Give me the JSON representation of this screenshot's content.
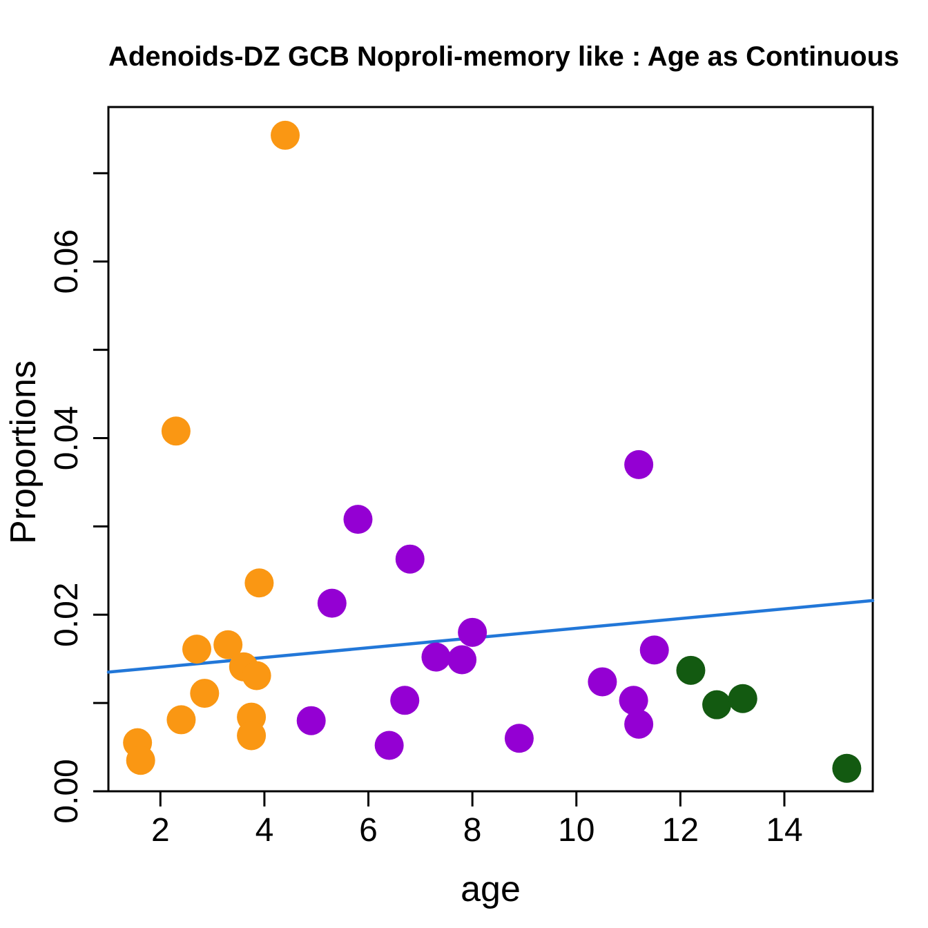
{
  "page": {
    "background_color": "#ffffff",
    "text_color": "#000000"
  },
  "chart": {
    "title": "Adenoids-DZ GCB Noproli-memory like : Age as Continuous",
    "xlabel": "age",
    "ylabel": "Proportions"
  },
  "chart_data": {
    "type": "scatter",
    "title": "Adenoids-DZ GCB Noproli-memory like : Age as Continuous",
    "xlabel": "age",
    "ylabel": "Proportions",
    "grid": false,
    "legend": null,
    "frame": "box",
    "xlim": [
      1.0,
      15.7
    ],
    "ylim": [
      0,
      0.0775
    ],
    "x_ticks": {
      "values": [
        2,
        4,
        6,
        8,
        10,
        12,
        14
      ],
      "labels": [
        "2",
        "4",
        "6",
        "8",
        "10",
        "12",
        "14"
      ]
    },
    "y_ticks": {
      "minor_values": [
        0,
        0.01,
        0.02,
        0.03,
        0.04,
        0.05,
        0.06,
        0.07
      ],
      "labeled_values": [
        0,
        0.02,
        0.04,
        0.06
      ],
      "labels": [
        "0.00",
        "0.02",
        "0.04",
        "0.06"
      ]
    },
    "series": [
      {
        "name": "group-orange",
        "color": "#FA9713",
        "points": [
          [
            1.56,
            0.0055
          ],
          [
            1.62,
            0.0035
          ],
          [
            2.3,
            0.0408
          ],
          [
            2.4,
            0.0081
          ],
          [
            2.7,
            0.0161
          ],
          [
            2.85,
            0.0111
          ],
          [
            3.3,
            0.0166
          ],
          [
            3.6,
            0.0141
          ],
          [
            3.75,
            0.0084
          ],
          [
            3.75,
            0.0063
          ],
          [
            3.85,
            0.0131
          ],
          [
            3.9,
            0.0236
          ],
          [
            4.4,
            0.0743
          ]
        ]
      },
      {
        "name": "group-purple",
        "color": "#9400D3",
        "points": [
          [
            4.9,
            0.008
          ],
          [
            5.3,
            0.0213
          ],
          [
            5.8,
            0.0308
          ],
          [
            6.4,
            0.0052
          ],
          [
            6.7,
            0.0103
          ],
          [
            6.8,
            0.0263
          ],
          [
            7.3,
            0.0152
          ],
          [
            7.8,
            0.0149
          ],
          [
            8.0,
            0.018
          ],
          [
            8.9,
            0.006
          ],
          [
            10.5,
            0.0124
          ],
          [
            11.1,
            0.0103
          ],
          [
            11.2,
            0.0076
          ],
          [
            11.2,
            0.037
          ],
          [
            11.5,
            0.016
          ]
        ]
      },
      {
        "name": "group-darkgreen",
        "color": "#135A11",
        "points": [
          [
            12.2,
            0.0137
          ],
          [
            12.7,
            0.0098
          ],
          [
            13.2,
            0.0105
          ],
          [
            15.2,
            0.0026
          ]
        ]
      }
    ],
    "regression_line": {
      "color": "#2277D8",
      "x1": 1.0,
      "y1": 0.0135,
      "x2": 15.7,
      "y2": 0.0216
    }
  }
}
